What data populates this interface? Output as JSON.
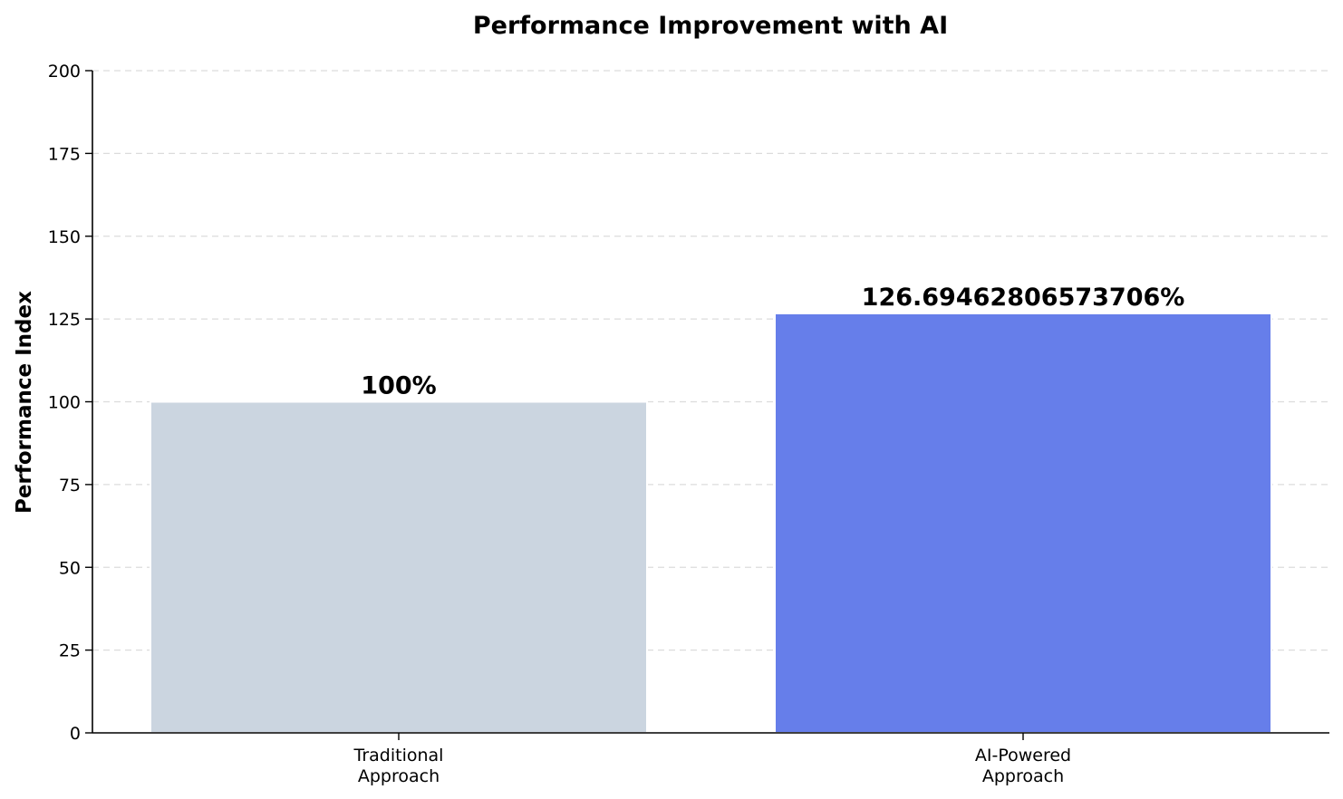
{
  "chart_data": {
    "type": "bar",
    "title": "Performance Improvement with AI",
    "xlabel": "",
    "ylabel": "Performance Index",
    "categories": [
      "Traditional\nApproach",
      "AI-Powered\nApproach"
    ],
    "values": [
      100,
      126.69462806573706
    ],
    "data_labels": [
      "100%",
      "126.69462806573706%"
    ],
    "colors": [
      "#cbd5e0",
      "#667eea"
    ],
    "ylim": [
      0,
      200
    ],
    "yticks": [
      0,
      25,
      50,
      75,
      100,
      125,
      150,
      175,
      200
    ],
    "grid": "y-dashed",
    "legend": "none"
  }
}
